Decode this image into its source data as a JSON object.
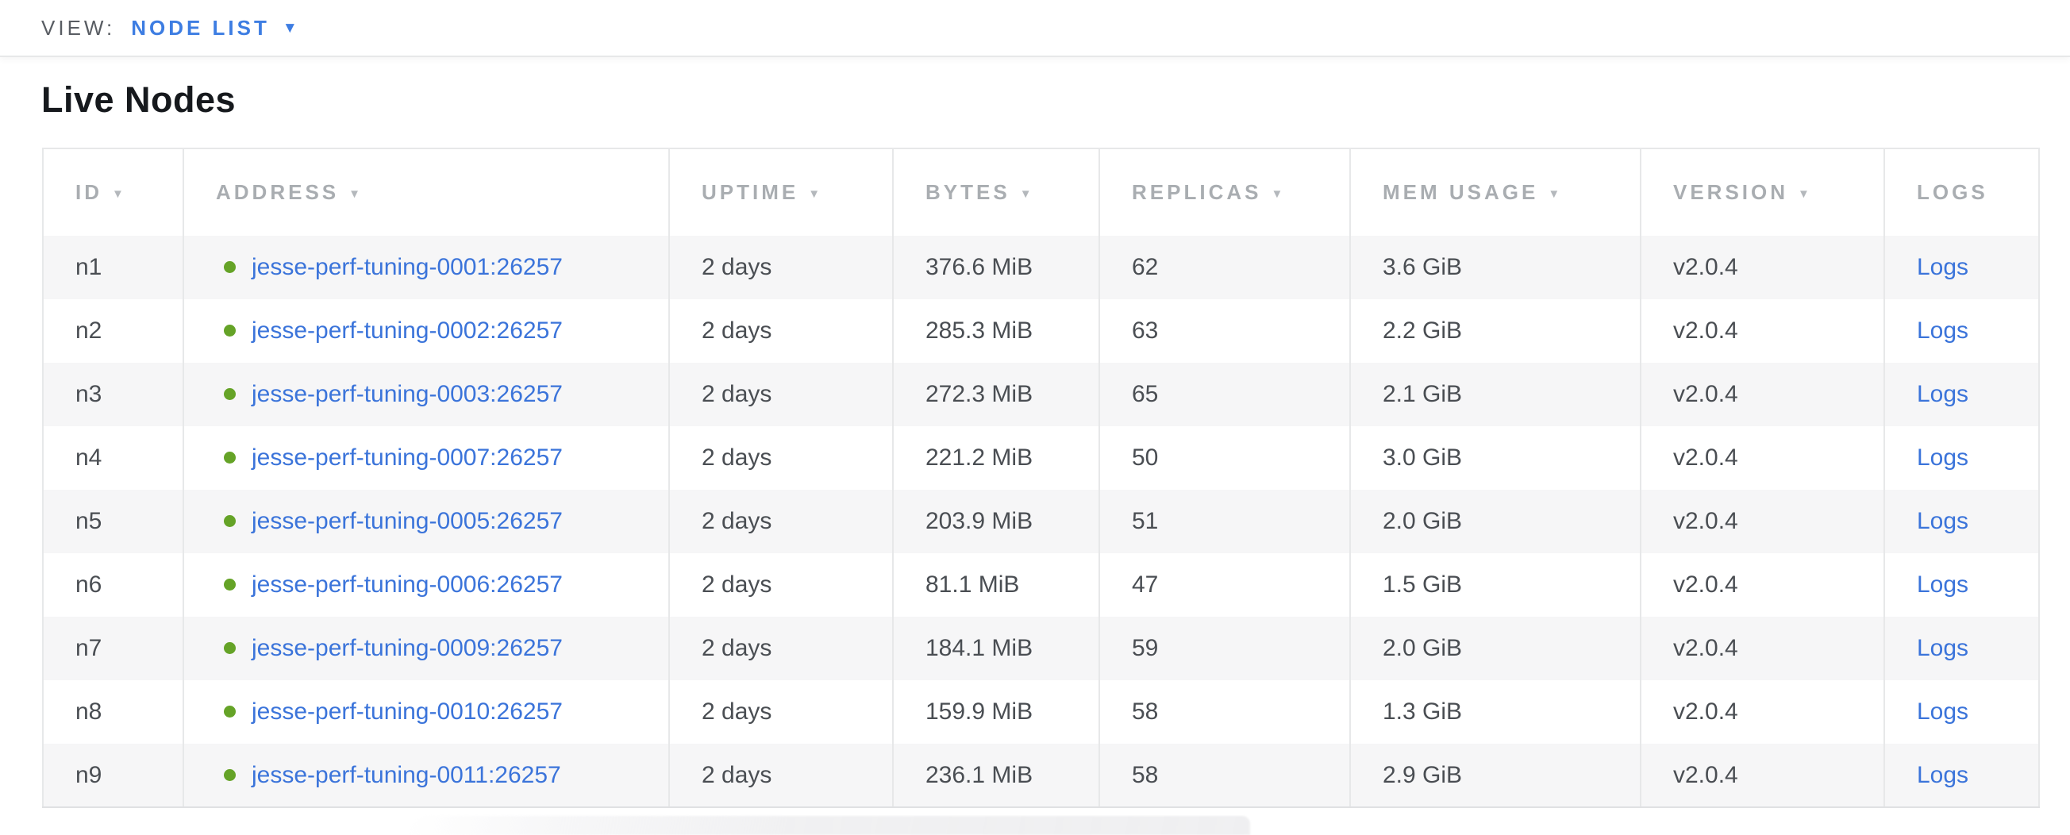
{
  "view_bar": {
    "label": "VIEW:",
    "selected": "NODE LIST",
    "caret": "▼"
  },
  "page": {
    "title": "Live Nodes"
  },
  "table": {
    "sort_caret": "▼",
    "columns": [
      {
        "key": "id",
        "label": "ID",
        "sortable": true
      },
      {
        "key": "address",
        "label": "ADDRESS",
        "sortable": true
      },
      {
        "key": "uptime",
        "label": "UPTIME",
        "sortable": true
      },
      {
        "key": "bytes",
        "label": "BYTES",
        "sortable": true
      },
      {
        "key": "replicas",
        "label": "REPLICAS",
        "sortable": true
      },
      {
        "key": "mem",
        "label": "MEM USAGE",
        "sortable": true
      },
      {
        "key": "version",
        "label": "VERSION",
        "sortable": true
      },
      {
        "key": "logs",
        "label": "LOGS",
        "sortable": false
      }
    ],
    "rows": [
      {
        "id": "n1",
        "status": "live",
        "address": "jesse-perf-tuning-0001:26257",
        "uptime": "2 days",
        "bytes": "376.6 MiB",
        "replicas": "62",
        "mem": "3.6 GiB",
        "version": "v2.0.4",
        "logs": "Logs"
      },
      {
        "id": "n2",
        "status": "live",
        "address": "jesse-perf-tuning-0002:26257",
        "uptime": "2 days",
        "bytes": "285.3 MiB",
        "replicas": "63",
        "mem": "2.2 GiB",
        "version": "v2.0.4",
        "logs": "Logs"
      },
      {
        "id": "n3",
        "status": "live",
        "address": "jesse-perf-tuning-0003:26257",
        "uptime": "2 days",
        "bytes": "272.3 MiB",
        "replicas": "65",
        "mem": "2.1 GiB",
        "version": "v2.0.4",
        "logs": "Logs"
      },
      {
        "id": "n4",
        "status": "live",
        "address": "jesse-perf-tuning-0007:26257",
        "uptime": "2 days",
        "bytes": "221.2 MiB",
        "replicas": "50",
        "mem": "3.0 GiB",
        "version": "v2.0.4",
        "logs": "Logs"
      },
      {
        "id": "n5",
        "status": "live",
        "address": "jesse-perf-tuning-0005:26257",
        "uptime": "2 days",
        "bytes": "203.9 MiB",
        "replicas": "51",
        "mem": "2.0 GiB",
        "version": "v2.0.4",
        "logs": "Logs"
      },
      {
        "id": "n6",
        "status": "live",
        "address": "jesse-perf-tuning-0006:26257",
        "uptime": "2 days",
        "bytes": "81.1 MiB",
        "replicas": "47",
        "mem": "1.5 GiB",
        "version": "v2.0.4",
        "logs": "Logs"
      },
      {
        "id": "n7",
        "status": "live",
        "address": "jesse-perf-tuning-0009:26257",
        "uptime": "2 days",
        "bytes": "184.1 MiB",
        "replicas": "59",
        "mem": "2.0 GiB",
        "version": "v2.0.4",
        "logs": "Logs"
      },
      {
        "id": "n8",
        "status": "live",
        "address": "jesse-perf-tuning-0010:26257",
        "uptime": "2 days",
        "bytes": "159.9 MiB",
        "replicas": "58",
        "mem": "1.3 GiB",
        "version": "v2.0.4",
        "logs": "Logs"
      },
      {
        "id": "n9",
        "status": "live",
        "address": "jesse-perf-tuning-0011:26257",
        "uptime": "2 days",
        "bytes": "236.1 MiB",
        "replicas": "58",
        "mem": "2.9 GiB",
        "version": "v2.0.4",
        "logs": "Logs"
      }
    ]
  },
  "colors": {
    "link_blue": "#3b74da",
    "view_blue": "#3d7de2",
    "live_green": "#65a327",
    "header_gray": "#a9adb1",
    "cell_text": "#4a4e53",
    "row_alt_bg": "#f6f6f7",
    "border": "#e7e8e9"
  }
}
